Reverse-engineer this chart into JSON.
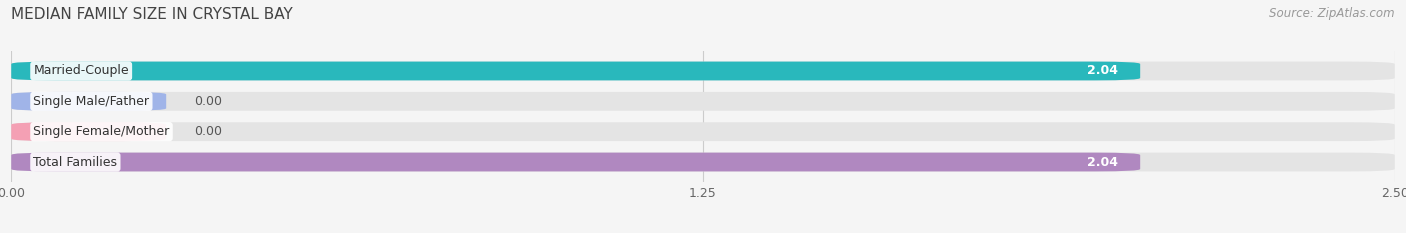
{
  "title": "MEDIAN FAMILY SIZE IN CRYSTAL BAY",
  "source": "Source: ZipAtlas.com",
  "categories": [
    "Married-Couple",
    "Single Male/Father",
    "Single Female/Mother",
    "Total Families"
  ],
  "values": [
    2.04,
    0.0,
    0.0,
    2.04
  ],
  "bar_colors": [
    "#29b8bc",
    "#a0b4e8",
    "#f4a0b4",
    "#b088c0"
  ],
  "xlim": [
    0,
    2.5
  ],
  "xticks": [
    0.0,
    1.25,
    2.5
  ],
  "xtick_labels": [
    "0.00",
    "1.25",
    "2.50"
  ],
  "background_color": "#f5f5f5",
  "bar_background_color": "#e4e4e4",
  "title_fontsize": 11,
  "source_fontsize": 8.5,
  "label_fontsize": 9,
  "value_fontsize": 9,
  "bar_height": 0.62,
  "zero_bar_width": 0.28
}
